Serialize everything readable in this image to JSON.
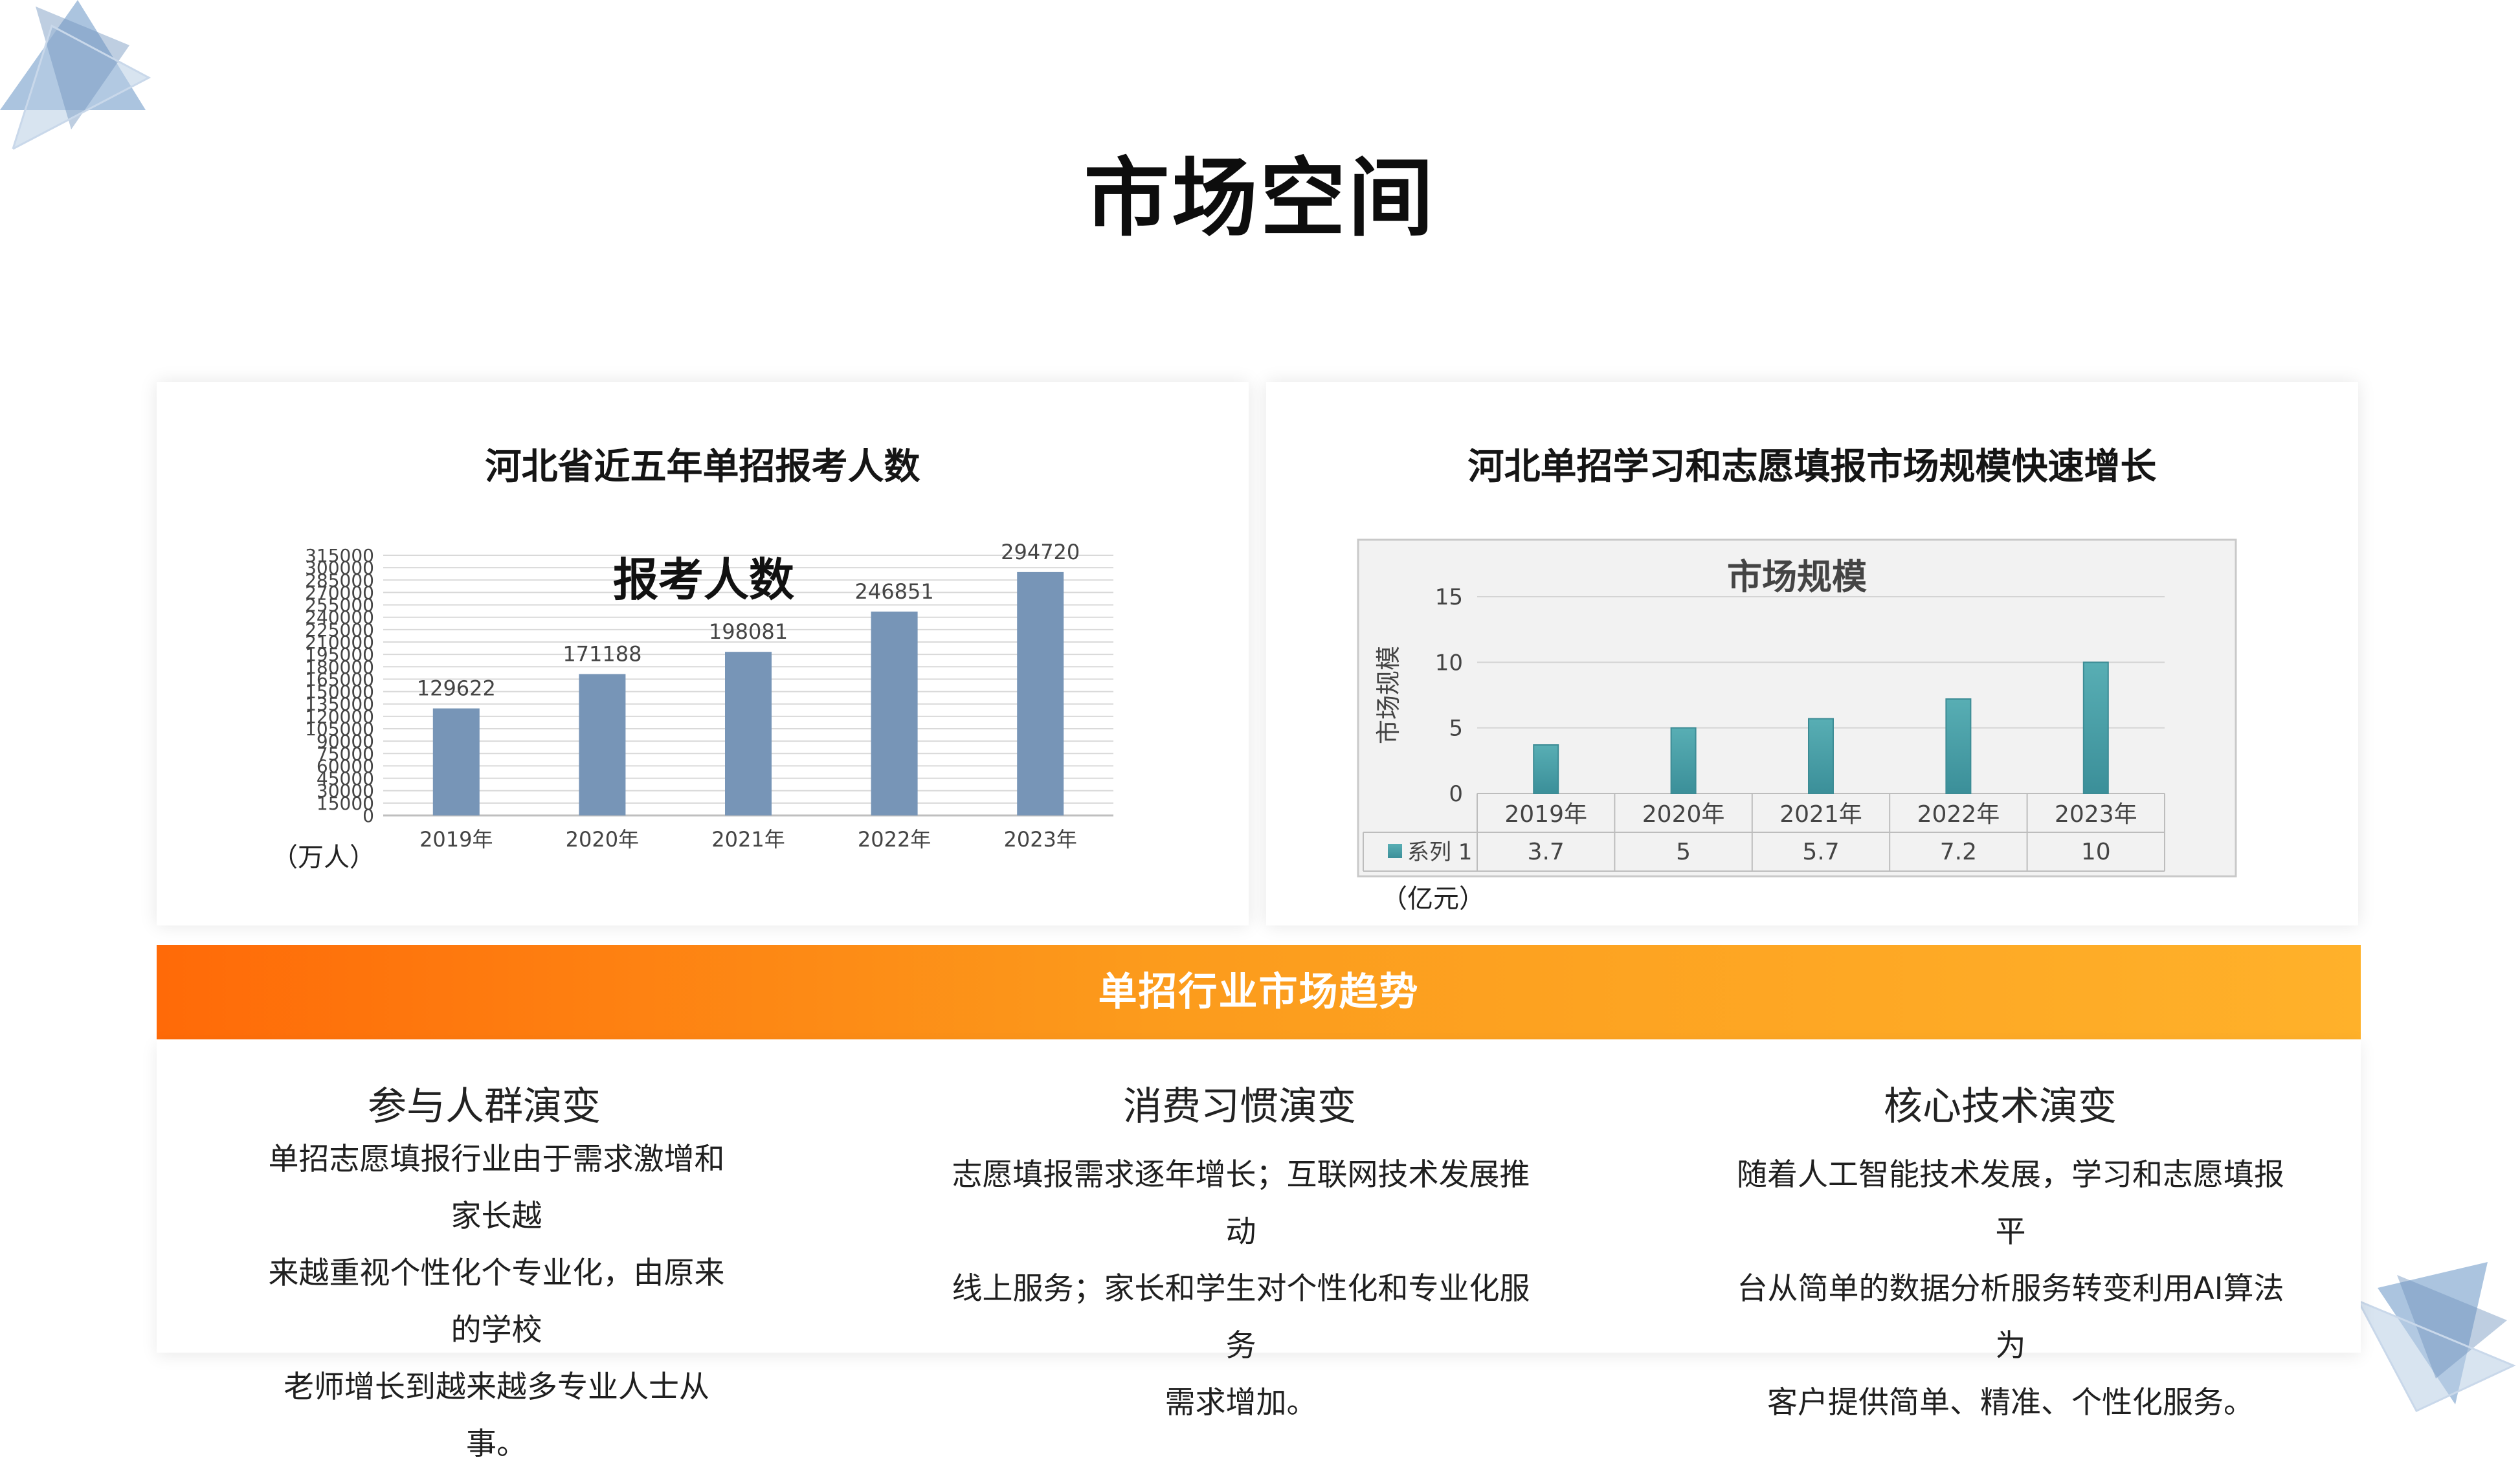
{
  "page": {
    "title": "市场空间"
  },
  "left_card": {
    "title": "河北省近五年单招报考人数",
    "unit": "（万人）"
  },
  "right_card": {
    "title": "河北单招学习和志愿填报市场规模快速增长",
    "unit": "（亿元）"
  },
  "banner": {
    "title": "单招行业市场趋势"
  },
  "trends": [
    {
      "heading": "参与人群演变",
      "lines": [
        "单招志愿填报行业由于需求激增和家长越",
        "来越重视个性化个专业化，由原来的学校",
        "老师增长到越来越多专业人士从事。"
      ]
    },
    {
      "heading": "消费习惯演变",
      "lines": [
        "志愿填报需求逐年增长；互联网技术发展推动",
        "线上服务；家长和学生对个性化和专业化服务",
        "需求增加。"
      ]
    },
    {
      "heading": "核心技术演变",
      "lines": [
        "随着人工智能技术发展，学习和志愿填报平",
        "台从简单的数据分析服务转变利用AI算法为",
        "客户提供简单、精准、个性化服务。"
      ]
    }
  ],
  "colors": {
    "bar_left": "#7795b7",
    "bar_right_top": "#58aeb4",
    "bar_right_bottom": "#3b8f99",
    "banner_start": "#ff6a08",
    "banner_end": "#ffb12a",
    "deco": "#8fb0d4"
  },
  "chart_data": [
    {
      "type": "bar",
      "title": "报考人数",
      "categories": [
        "2019年",
        "2020年",
        "2021年",
        "2022年",
        "2023年"
      ],
      "values": [
        129622,
        171188,
        198081,
        246851,
        294720
      ],
      "value_labels": [
        "129622",
        "171188",
        "198081",
        "246851",
        "294720"
      ],
      "ylim": [
        0,
        315000
      ],
      "yticks": [
        0,
        15000,
        30000,
        45000,
        60000,
        75000,
        90000,
        105000,
        120000,
        135000,
        150000,
        165000,
        180000,
        195000,
        210000,
        225000,
        240000,
        255000,
        270000,
        285000,
        300000,
        315000
      ],
      "ytick_labels": [
        "0",
        "15000",
        "30000",
        "45000",
        "60000",
        "75000",
        "90000",
        "105000",
        "120000",
        "135000",
        "150000",
        "165000",
        "180000",
        "195000",
        "210000",
        "225000",
        "240000",
        "255000",
        "270000",
        "285000",
        "300000",
        "315000"
      ],
      "grid": true
    },
    {
      "type": "bar",
      "title": "市场规模",
      "ylabel": "市场规模",
      "categories": [
        "2019年",
        "2020年",
        "2021年",
        "2022年",
        "2023年"
      ],
      "series": [
        {
          "name": "系列 1",
          "values": [
            3.7,
            5,
            5.7,
            7.2,
            10
          ],
          "value_labels": [
            "3.7",
            "5",
            "5.7",
            "7.2",
            "10"
          ]
        }
      ],
      "ylim": [
        0,
        15
      ],
      "yticks": [
        0,
        5,
        10,
        15
      ],
      "ytick_labels": [
        "0",
        "5",
        "10",
        "15"
      ],
      "grid": true,
      "data_table": true
    }
  ]
}
